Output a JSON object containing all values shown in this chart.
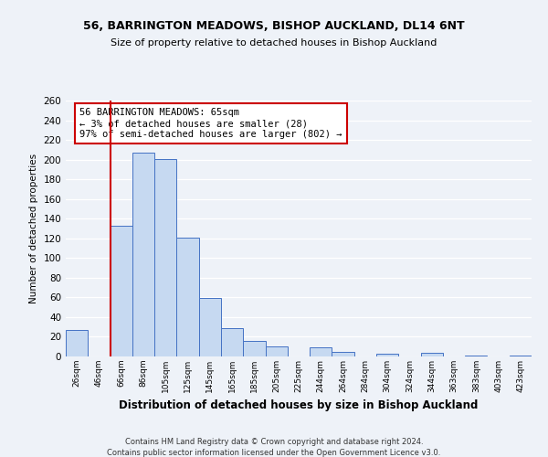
{
  "title": "56, BARRINGTON MEADOWS, BISHOP AUCKLAND, DL14 6NT",
  "subtitle": "Size of property relative to detached houses in Bishop Auckland",
  "xlabel": "Distribution of detached houses by size in Bishop Auckland",
  "ylabel": "Number of detached properties",
  "bar_labels": [
    "26sqm",
    "46sqm",
    "66sqm",
    "86sqm",
    "105sqm",
    "125sqm",
    "145sqm",
    "165sqm",
    "185sqm",
    "205sqm",
    "225sqm",
    "244sqm",
    "264sqm",
    "284sqm",
    "304sqm",
    "324sqm",
    "344sqm",
    "363sqm",
    "383sqm",
    "403sqm",
    "423sqm"
  ],
  "bar_values": [
    27,
    0,
    133,
    207,
    201,
    121,
    59,
    29,
    16,
    10,
    0,
    9,
    5,
    0,
    3,
    0,
    4,
    0,
    1,
    0,
    1
  ],
  "bar_color": "#c6d9f1",
  "bar_edge_color": "#4472c4",
  "ylim": [
    0,
    260
  ],
  "yticks": [
    0,
    20,
    40,
    60,
    80,
    100,
    120,
    140,
    160,
    180,
    200,
    220,
    240,
    260
  ],
  "property_line_color": "#cc0000",
  "annotation_title": "56 BARRINGTON MEADOWS: 65sqm",
  "annotation_line1": "← 3% of detached houses are smaller (28)",
  "annotation_line2": "97% of semi-detached houses are larger (802) →",
  "annotation_box_color": "#cc0000",
  "footnote1": "Contains HM Land Registry data © Crown copyright and database right 2024.",
  "footnote2": "Contains public sector information licensed under the Open Government Licence v3.0.",
  "bg_color": "#eef2f8",
  "plot_bg_color": "#eef2f8",
  "grid_color": "#ffffff"
}
